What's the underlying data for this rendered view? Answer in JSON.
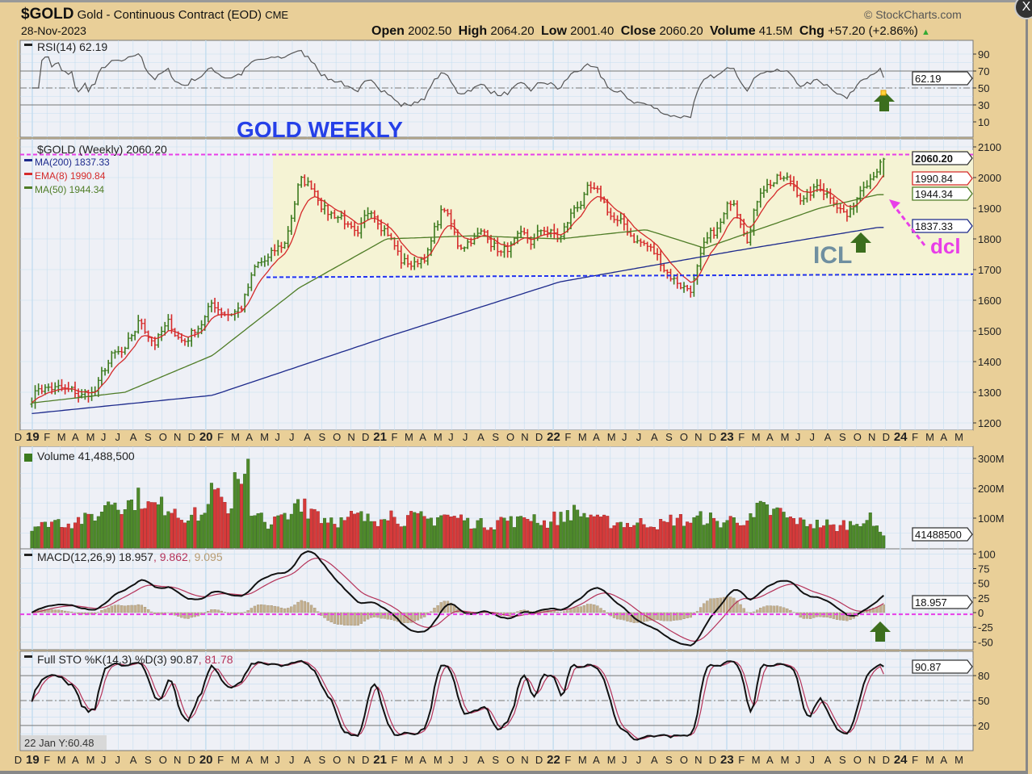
{
  "header": {
    "symbol": "$GOLD",
    "name": "Gold - Continuous Contract (EOD)",
    "exchange": "CME",
    "date": "28-Nov-2023",
    "brand": "© StockCharts.com",
    "open_label": "Open",
    "open": "2002.50",
    "high_label": "High",
    "high": "2064.20",
    "low_label": "Low",
    "low": "2001.40",
    "close_label": "Close",
    "close": "2060.20",
    "volume_label": "Volume",
    "volume": "41.5M",
    "chg_label": "Chg",
    "chg": "+57.20 (+2.86%)",
    "chg_arrow": "▲",
    "close_button": "X"
  },
  "colors": {
    "background": "#e9cf98",
    "panel": "#eef0f6",
    "grid": "#c5def0",
    "up": "#3c7a1e",
    "down": "#d52b2b",
    "ma200": "#1d2a8c",
    "ema8": "#d52b2b",
    "ma50": "#4e7c26",
    "magenta": "#e83ee8",
    "blue_line": "#2233ee",
    "zone": "#f5f3d4",
    "annotation_blue": "#2540e8",
    "icl": "#6f8fa0",
    "arrow_green": "#3c6e1e"
  },
  "annotations": {
    "title": "GOLD WEEKLY",
    "icl": "ICL",
    "dcl": "dcl"
  },
  "chart_data": [
    {
      "panel": "rsi",
      "type": "line",
      "label": "RSI(14) 62.19",
      "ylim": [
        0,
        100
      ],
      "ticks": [
        "90",
        "70",
        "50",
        "30",
        "10"
      ],
      "current": "62.19",
      "grid": true
    },
    {
      "panel": "price",
      "type": "ohlc-bar",
      "label": "$GOLD (Weekly) 2060.20",
      "ylim": [
        1180,
        2120
      ],
      "ticks": [
        "2100",
        "2000",
        "1900",
        "1800",
        "1700",
        "1600",
        "1500",
        "1400",
        "1300",
        "1200"
      ],
      "legend": [
        {
          "name": "MA(200) 1837.33",
          "color": "#1d2a8c"
        },
        {
          "name": "EMA(8) 1990.84",
          "color": "#d52b2b"
        },
        {
          "name": "MA(50) 1944.34",
          "color": "#4e7c26"
        }
      ],
      "value_tags": [
        "2060.20",
        "1990.84",
        "1944.34",
        "1837.33"
      ],
      "x_start": "2018-12-31",
      "x_end": "2024-05-31",
      "monthly_close": {
        "months": [
          "2018-12",
          "2019-01",
          "2019-02",
          "2019-03",
          "2019-04",
          "2019-05",
          "2019-06",
          "2019-07",
          "2019-08",
          "2019-09",
          "2019-10",
          "2019-11",
          "2019-12",
          "2020-01",
          "2020-02",
          "2020-03",
          "2020-04",
          "2020-05",
          "2020-06",
          "2020-07",
          "2020-08",
          "2020-09",
          "2020-10",
          "2020-11",
          "2020-12",
          "2021-01",
          "2021-02",
          "2021-03",
          "2021-04",
          "2021-05",
          "2021-06",
          "2021-07",
          "2021-08",
          "2021-09",
          "2021-10",
          "2021-11",
          "2021-12",
          "2022-01",
          "2022-02",
          "2022-03",
          "2022-04",
          "2022-05",
          "2022-06",
          "2022-07",
          "2022-08",
          "2022-09",
          "2022-10",
          "2022-11",
          "2022-12",
          "2023-01",
          "2023-02",
          "2023-03",
          "2023-04",
          "2023-05",
          "2023-06",
          "2023-07",
          "2023-08",
          "2023-09",
          "2023-10",
          "2023-11"
        ],
        "values": [
          1250,
          1320,
          1315,
          1295,
          1285,
          1305,
          1410,
          1415,
          1525,
          1470,
          1515,
          1465,
          1520,
          1585,
          1565,
          1580,
          1700,
          1730,
          1780,
          1985,
          1970,
          1890,
          1880,
          1780,
          1895,
          1850,
          1730,
          1715,
          1770,
          1905,
          1770,
          1815,
          1815,
          1757,
          1785,
          1775,
          1830,
          1795,
          1900,
          1950,
          1910,
          1850,
          1810,
          1780,
          1725,
          1670,
          1640,
          1760,
          1825,
          1930,
          1830,
          1985,
          2000,
          1980,
          1930,
          1970,
          1945,
          1870,
          1995,
          2060
        ]
      },
      "ma200": {
        "months": [
          "2018-12",
          "2020-01",
          "2021-01",
          "2022-01",
          "2023-01",
          "2023-11"
        ],
        "values": [
          1228,
          1290,
          1480,
          1660,
          1760,
          1837.33
        ]
      },
      "ma50": {
        "months": [
          "2018-12",
          "2019-07",
          "2020-01",
          "2020-07",
          "2021-01",
          "2021-07",
          "2022-01",
          "2022-07",
          "2022-11",
          "2023-07",
          "2023-11"
        ],
        "values": [
          1262,
          1300,
          1420,
          1640,
          1800,
          1810,
          1800,
          1830,
          1770,
          1900,
          1944.34
        ]
      },
      "resistance": 2075,
      "support": [
        1675,
        1685
      ]
    },
    {
      "panel": "volume",
      "type": "bar",
      "label": "Volume 41,488,500",
      "ylim": [
        0,
        320
      ],
      "unit": "M",
      "ticks": [
        "300M",
        "200M",
        "100M"
      ],
      "current": "41488500",
      "monthly_avg_volume": [
        90,
        75,
        90,
        85,
        95,
        110,
        160,
        150,
        165,
        140,
        140,
        110,
        110,
        180,
        140,
        260,
        100,
        85,
        100,
        160,
        130,
        100,
        90,
        105,
        95,
        120,
        95,
        100,
        95,
        110,
        100,
        85,
        80,
        95,
        90,
        105,
        85,
        100,
        120,
        110,
        90,
        85,
        80,
        85,
        80,
        95,
        90,
        100,
        85,
        95,
        95,
        130,
        120,
        95,
        85,
        80,
        70,
        80,
        95,
        70
      ]
    },
    {
      "panel": "macd",
      "type": "line",
      "label": "MACD(12,26,9) 18.957",
      "signal": "9.862",
      "histogram": "9.095",
      "ylim": [
        -60,
        110
      ],
      "ticks": [
        "100",
        "75",
        "50",
        "25",
        "0",
        "-25",
        "-50"
      ],
      "current": "18.957"
    },
    {
      "panel": "sto",
      "type": "line",
      "label": "Full STO %K(14,3) %D(3) 90.87",
      "d_value": "81.78",
      "ylim": [
        0,
        105
      ],
      "ticks": [
        "80",
        "50",
        "20"
      ],
      "current": [
        "90.87",
        "81.78"
      ]
    }
  ],
  "x_axis": {
    "labels": [
      "D",
      "19",
      "F",
      "M",
      "A",
      "M",
      "J",
      "J",
      "A",
      "S",
      "O",
      "N",
      "D",
      "20",
      "F",
      "M",
      "A",
      "M",
      "J",
      "J",
      "A",
      "S",
      "O",
      "N",
      "D",
      "21",
      "F",
      "M",
      "A",
      "M",
      "J",
      "J",
      "A",
      "S",
      "O",
      "N",
      "D",
      "22",
      "F",
      "M",
      "A",
      "M",
      "J",
      "J",
      "A",
      "S",
      "O",
      "N",
      "D",
      "23",
      "F",
      "M",
      "A",
      "M",
      "J",
      "J",
      "A",
      "S",
      "O",
      "N",
      "D",
      "24",
      "F",
      "M",
      "A",
      "M"
    ]
  },
  "cursor_readout": "22 Jan Y:60.48"
}
